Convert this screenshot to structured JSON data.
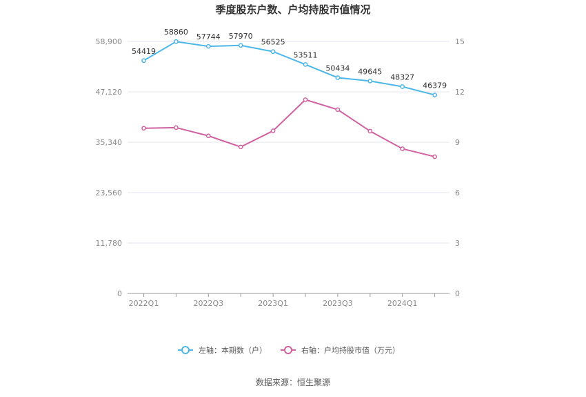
{
  "chart_data": {
    "type": "line",
    "title": "季度股东户数、户均持股市值情况",
    "x": [
      "2022Q1",
      "2022Q2",
      "2022Q3",
      "2022Q4",
      "2023Q1",
      "2023Q2",
      "2023Q3",
      "2023Q4",
      "2024Q1",
      "2024Q2"
    ],
    "x_tick_labels": [
      "2022Q1",
      "2022Q3",
      "2023Q1",
      "2023Q3",
      "2024Q1"
    ],
    "left_axis": {
      "ylim": [
        0,
        58900
      ],
      "ticks": [
        "0",
        "11,780",
        "23,560",
        "35,340",
        "47,120",
        "58,900"
      ]
    },
    "right_axis": {
      "ylim": [
        0,
        15
      ],
      "ticks": [
        "0",
        "3",
        "6",
        "9",
        "12",
        "15"
      ]
    },
    "series": [
      {
        "name": "左轴：本期数（户）",
        "axis": "left",
        "color": "#4db6e8",
        "values": [
          54419,
          58860,
          57744,
          57970,
          56525,
          53511,
          50434,
          49645,
          48327,
          46379
        ],
        "labels": [
          "54419",
          "58860",
          "57744",
          "57970",
          "56525",
          "53511",
          "50434",
          "49645",
          "48327",
          "46379"
        ]
      },
      {
        "name": "右轴：户均持股市值（万元）",
        "axis": "right",
        "color": "#d0609f",
        "values": [
          9.83,
          9.87,
          9.38,
          8.72,
          9.68,
          11.53,
          10.94,
          9.66,
          8.61,
          8.14
        ]
      }
    ],
    "grid": true,
    "legend_position": "bottom"
  },
  "source": "数据来源：恒生聚源"
}
